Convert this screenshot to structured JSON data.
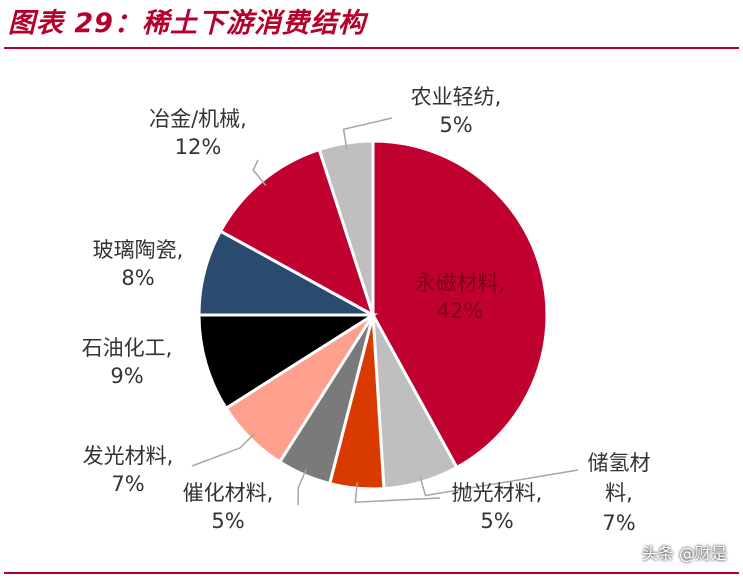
{
  "page": {
    "title": "图表 29：稀土下游消费结构",
    "watermark": "头条 @财是"
  },
  "chart_data": {
    "type": "pie",
    "title": "图表 29：稀土下游消费结构",
    "slices": [
      {
        "label": "永磁材料",
        "display_value": "42%",
        "value": 42,
        "color": "#c0002f"
      },
      {
        "label": "储氢材料",
        "display_value": "7%",
        "value": 7,
        "color": "#bfbfbf"
      },
      {
        "label": "抛光材料",
        "display_value": "5%",
        "value": 5,
        "color": "#d93a00"
      },
      {
        "label": "催化材料",
        "display_value": "5%",
        "value": 5,
        "color": "#7a7a7a"
      },
      {
        "label": "发光材料",
        "display_value": "7%",
        "value": 7,
        "color": "#ffa08f"
      },
      {
        "label": "石油化工",
        "display_value": "9%",
        "value": 9,
        "color": "#000000"
      },
      {
        "label": "玻璃陶瓷",
        "display_value": "8%",
        "value": 8,
        "color": "#2a4a6e"
      },
      {
        "label": "冶金/机械",
        "display_value": "12%",
        "value": 12,
        "color": "#c0002f"
      },
      {
        "label": "农业轻纺",
        "display_value": "5%",
        "value": 5,
        "color": "#bfbfbf"
      }
    ],
    "start_angle_deg": 0,
    "direction": "clockwise"
  }
}
